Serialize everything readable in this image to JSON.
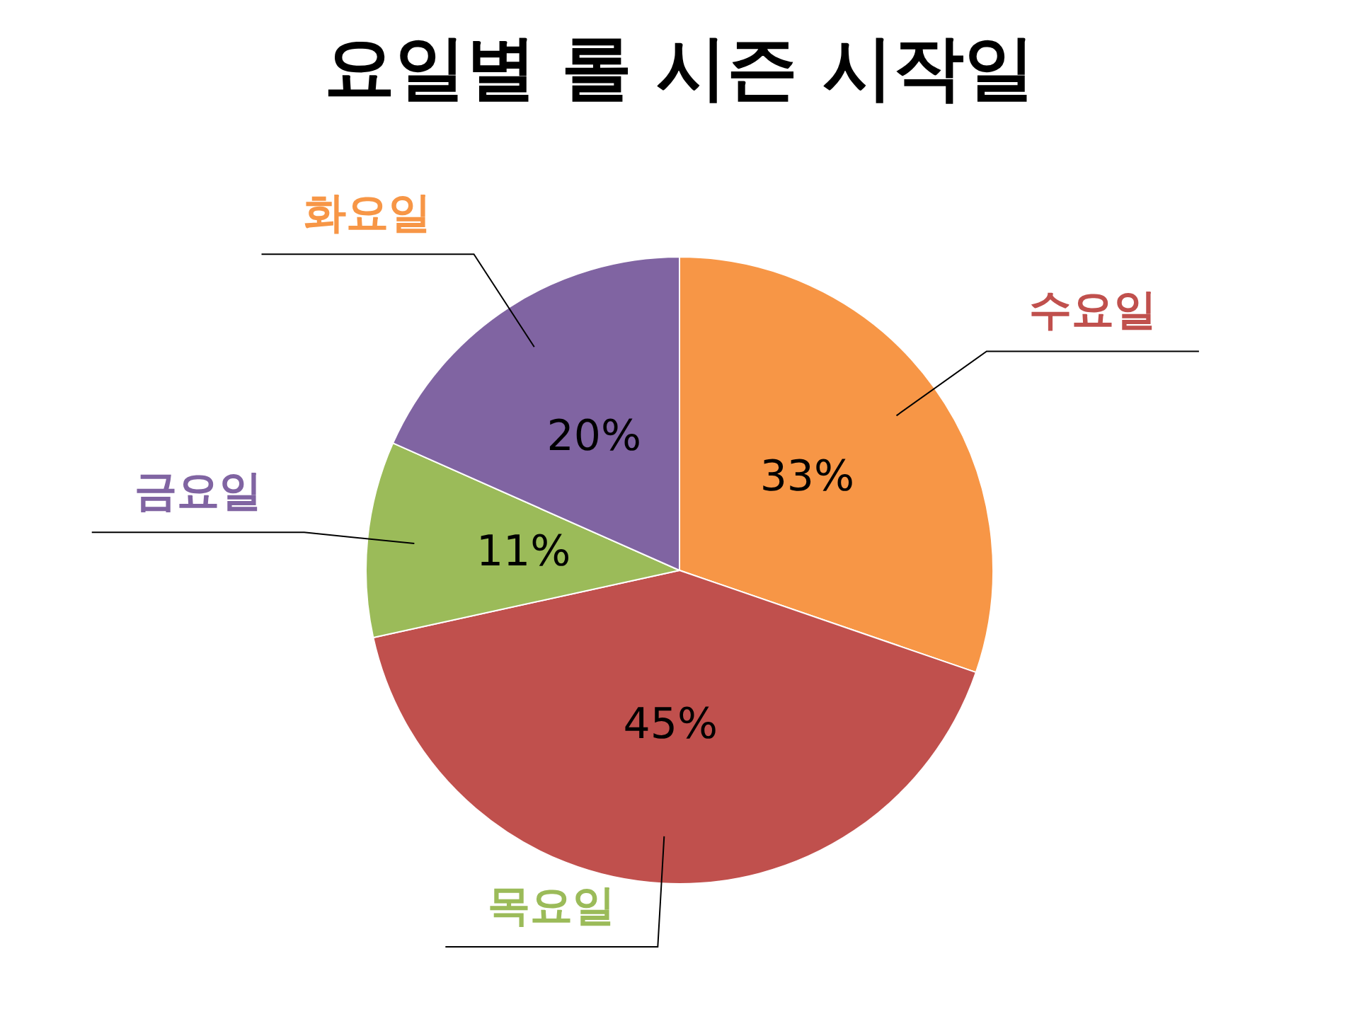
{
  "chart_data": {
    "type": "pie",
    "title": "요일별 롤 시즌 시작일",
    "categories": [
      "수요일",
      "목요일",
      "금요일",
      "화요일"
    ],
    "values": [
      33,
      45,
      11,
      20
    ],
    "value_labels": [
      "33%",
      "45%",
      "11%",
      "20%"
    ],
    "colors": [
      "#f79646",
      "#c0504d",
      "#9bbb59",
      "#8064a2"
    ]
  }
}
